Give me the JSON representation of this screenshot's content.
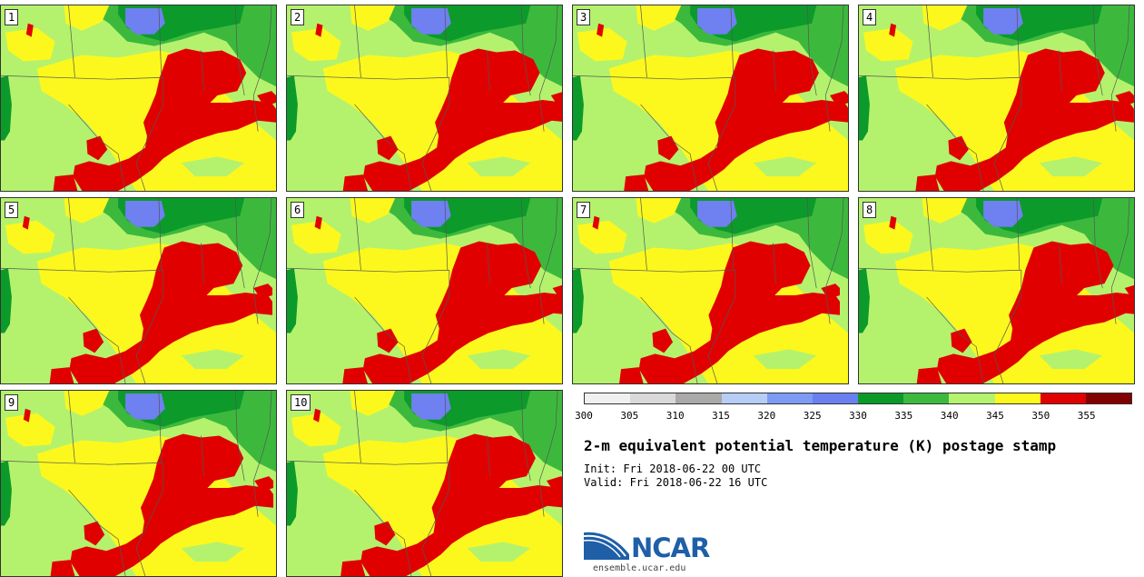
{
  "title": "2-m equivalent potential temperature (K) postage stamp",
  "init": "Init: Fri 2018-06-22 00 UTC",
  "valid": "Valid: Fri 2018-06-22 16 UTC",
  "members": [
    "1",
    "2",
    "3",
    "4",
    "5",
    "6",
    "7",
    "8",
    "9",
    "10"
  ],
  "colorbar": {
    "ticks": [
      "300",
      "305",
      "310",
      "315",
      "320",
      "325",
      "330",
      "335",
      "340",
      "345",
      "350",
      "355"
    ],
    "colors": [
      "#f0f0f0",
      "#d9d9d9",
      "#a9a9a9",
      "#b6cdf6",
      "#7d9bf5",
      "#6a7ff0",
      "#0a9a2a",
      "#3db93e",
      "#b5f36e",
      "#fcf81d",
      "#e00000",
      "#820000"
    ]
  },
  "field_colors": {
    "deep_green": "#0c9a2b",
    "green": "#3cb93d",
    "light_green": "#b4f26d",
    "yellow": "#fcf81d",
    "red": "#e00000",
    "blue": "#6f80f0"
  },
  "logo": {
    "text": "NCAR",
    "url": "ensemble.ucar.edu"
  }
}
